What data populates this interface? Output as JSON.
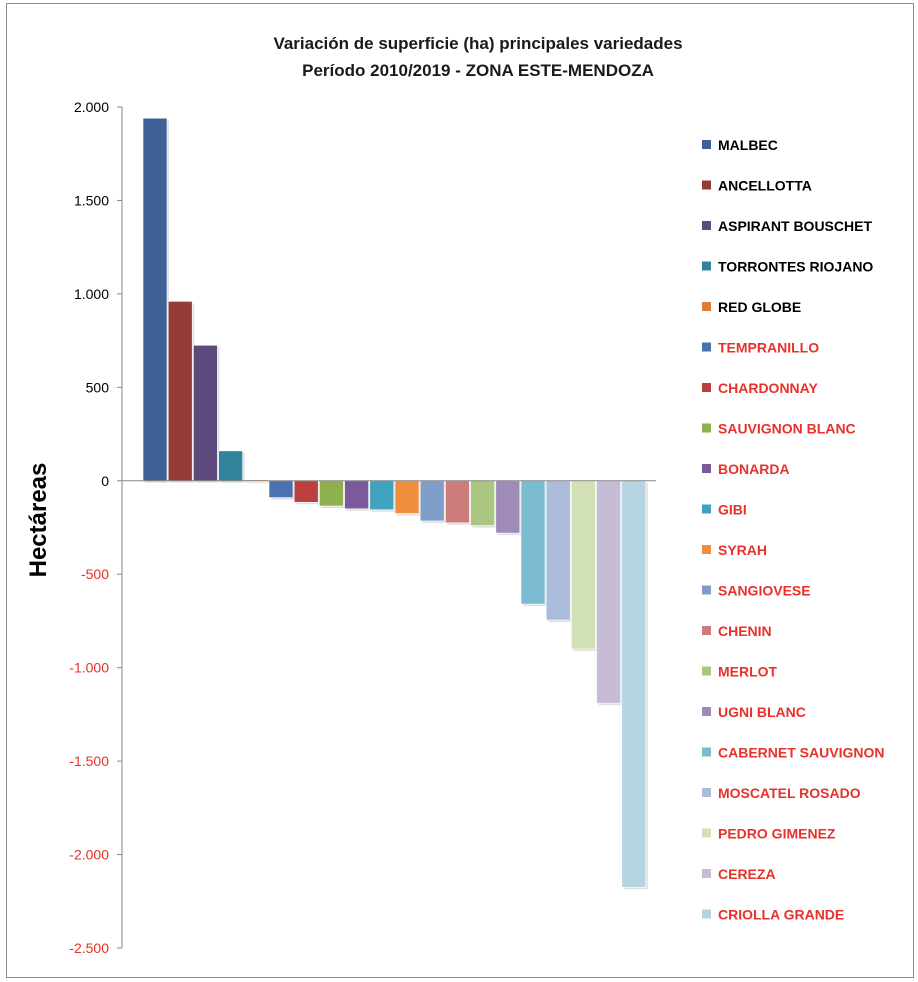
{
  "chart_data": {
    "type": "bar",
    "title": "Variación de superficie (ha) principales variedades",
    "subtitle": "Período 2010/2019 - ZONA ESTE-MENDOZA",
    "ylabel": "Hectáreas",
    "xlabel": "",
    "ylim": [
      -2500,
      2000
    ],
    "yticks": [
      {
        "value": 2000,
        "label": "2.000"
      },
      {
        "value": 1500,
        "label": "1.500"
      },
      {
        "value": 1000,
        "label": "1.000"
      },
      {
        "value": 500,
        "label": "500"
      },
      {
        "value": 0,
        "label": "0"
      },
      {
        "value": -500,
        "label": "-500"
      },
      {
        "value": -1000,
        "label": "-1.000"
      },
      {
        "value": -1500,
        "label": "-1.500"
      },
      {
        "value": -2000,
        "label": "-2.000"
      },
      {
        "value": -2500,
        "label": "-2.500"
      }
    ],
    "positive_tick_color": "#000000",
    "negative_tick_color": "#e8312a",
    "legend_position": "right",
    "series": [
      {
        "name": "MALBEC",
        "value": 1940,
        "color": "#3e6094",
        "legend_text_color": "#000000"
      },
      {
        "name": "ANCELLOTTA",
        "value": 960,
        "color": "#973b38",
        "legend_text_color": "#000000"
      },
      {
        "name": "ASPIRANT BOUSCHET",
        "value": 725,
        "color": "#5d4a7c",
        "legend_text_color": "#000000"
      },
      {
        "name": "TORRONTES RIOJANO",
        "value": 160,
        "color": "#31849b",
        "legend_text_color": "#000000"
      },
      {
        "name": "RED GLOBE",
        "value": 5,
        "color": "#e07b39",
        "legend_text_color": "#000000"
      },
      {
        "name": "TEMPRANILLO",
        "value": -90,
        "color": "#4a72b0",
        "legend_text_color": "#e8312a"
      },
      {
        "name": "CHARDONNAY",
        "value": -115,
        "color": "#b9403d",
        "legend_text_color": "#e8312a"
      },
      {
        "name": "SAUVIGNON BLANC",
        "value": -135,
        "color": "#8fb04f",
        "legend_text_color": "#e8312a"
      },
      {
        "name": "BONARDA",
        "value": -150,
        "color": "#7a5a9a",
        "legend_text_color": "#e8312a"
      },
      {
        "name": "GIBI",
        "value": -155,
        "color": "#3fa3bf",
        "legend_text_color": "#e8312a"
      },
      {
        "name": "SYRAH",
        "value": -175,
        "color": "#f08e3f",
        "legend_text_color": "#e8312a"
      },
      {
        "name": "SANGIOVESE",
        "value": -215,
        "color": "#7f9dc9",
        "legend_text_color": "#e8312a"
      },
      {
        "name": "CHENIN",
        "value": -225,
        "color": "#cc7c7a",
        "legend_text_color": "#e8312a"
      },
      {
        "name": "MERLOT",
        "value": -240,
        "color": "#a9c77e",
        "legend_text_color": "#e8312a"
      },
      {
        "name": "UGNI BLANC",
        "value": -280,
        "color": "#9f8bb8",
        "legend_text_color": "#e8312a"
      },
      {
        "name": "CABERNET SAUVIGNON",
        "value": -660,
        "color": "#7bbcd1",
        "legend_text_color": "#e8312a"
      },
      {
        "name": "MOSCATEL ROSADO",
        "value": -745,
        "color": "#abbcdb",
        "legend_text_color": "#e8312a"
      },
      {
        "name": "PEDRO GIMENEZ",
        "value": -900,
        "color": "#d2e0b6",
        "legend_text_color": "#e8312a"
      },
      {
        "name": "CEREZA",
        "value": -1190,
        "color": "#c6bcd6",
        "legend_text_color": "#e8312a"
      },
      {
        "name": "CRIOLLA GRANDE",
        "value": -2175,
        "color": "#b3d4e0",
        "legend_text_color": "#e8312a"
      }
    ]
  }
}
